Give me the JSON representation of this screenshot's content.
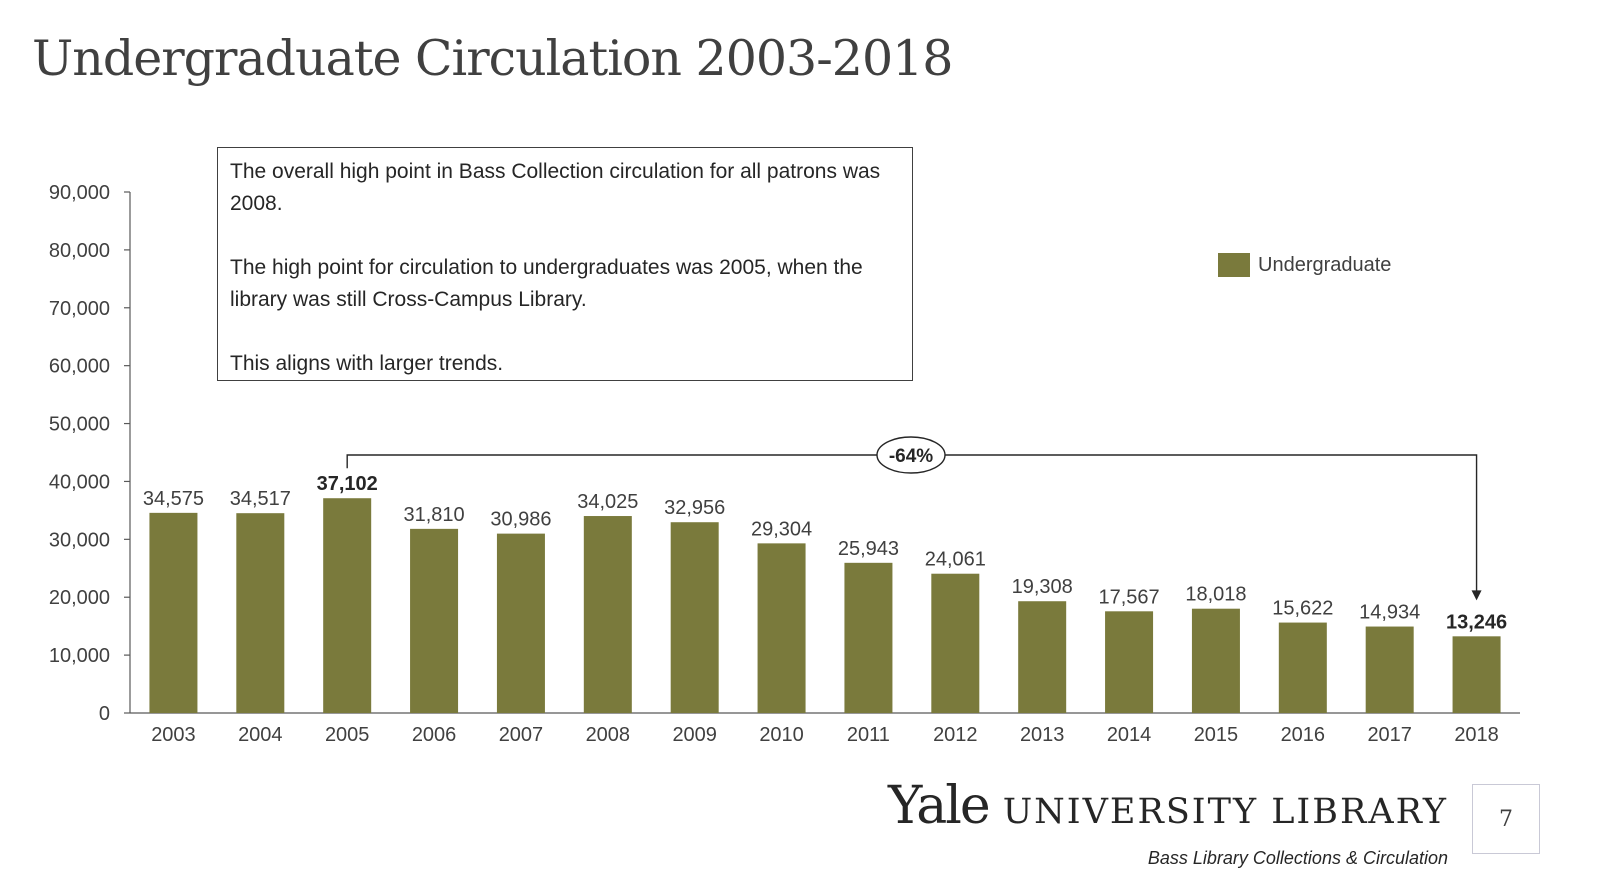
{
  "slide": {
    "title": "Undergraduate Circulation 2003-2018",
    "page_number": "7"
  },
  "callout": {
    "paragraph_1": "The overall high point in Bass Collection circulation for all patrons was 2008.",
    "paragraph_2": "The high point for circulation to undergraduates was 2005, when the library was still Cross-Campus Library.",
    "paragraph_3": "This aligns with larger trends."
  },
  "logo": {
    "yale": "Yale",
    "university_library": "UNIVERSITY LIBRARY",
    "subtitle": "Bass Library Collections & Circulation"
  },
  "chart_data": {
    "type": "bar",
    "title": "Undergraduate Circulation 2003-2018",
    "xlabel": "",
    "ylabel": "",
    "ylim": [
      0,
      90000
    ],
    "yticks": [
      0,
      10000,
      20000,
      30000,
      40000,
      50000,
      60000,
      70000,
      80000,
      90000
    ],
    "ytick_labels": [
      "0",
      "10,000",
      "20,000",
      "30,000",
      "40,000",
      "50,000",
      "60,000",
      "70,000",
      "80,000",
      "90,000"
    ],
    "grid": false,
    "legend_position": "top-right",
    "categories": [
      "2003",
      "2004",
      "2005",
      "2006",
      "2007",
      "2008",
      "2009",
      "2010",
      "2011",
      "2012",
      "2013",
      "2014",
      "2015",
      "2016",
      "2017",
      "2018"
    ],
    "series": [
      {
        "name": "Undergraduate",
        "color": "#7a7a3c",
        "values": [
          34575,
          34517,
          37102,
          31810,
          30986,
          34025,
          32956,
          29304,
          25943,
          24061,
          19308,
          17567,
          18018,
          15622,
          14934,
          13246
        ],
        "labels": [
          "34,575",
          "34,517",
          "37,102",
          "31,810",
          "30,986",
          "34,025",
          "32,956",
          "29,304",
          "25,943",
          "24,061",
          "19,308",
          "17,567",
          "18,018",
          "15,622",
          "14,934",
          "13,246"
        ],
        "bold_labels": [
          "2005",
          "2018"
        ]
      }
    ],
    "annotation": {
      "text": "-64%",
      "from_category": "2005",
      "to_category": "2018"
    }
  }
}
